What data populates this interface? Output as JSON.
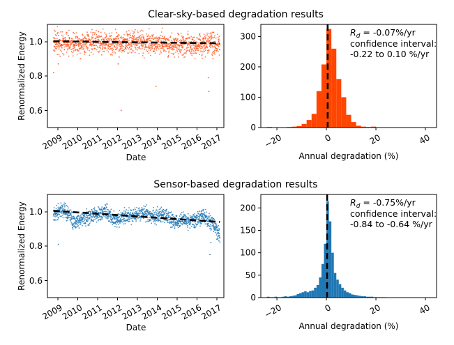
{
  "figure": {
    "rows": [
      {
        "title": "Clear-sky-based degradation results",
        "scatter": {
          "type": "scatter",
          "xlabel": "Date",
          "ylabel": "Renormalized Energy",
          "x_tick_labels": [
            "2009",
            "2010",
            "2011",
            "2012",
            "2013",
            "2014",
            "2015",
            "2016",
            "2017"
          ],
          "y_tick_labels": [
            "0.6",
            "0.8",
            "1.0"
          ],
          "xlim": [
            2008.65,
            2017.5
          ],
          "ylim": [
            0.5,
            1.1
          ],
          "point_color": "#ff5722",
          "trend": {
            "x": [
              2008.95,
              2017.3
            ],
            "y": [
              1.002,
              0.99
            ]
          },
          "center_curve": {
            "x": [
              2009,
              2010,
              2011,
              2012,
              2013,
              2014,
              2015,
              2016,
              2017,
              2017.3
            ],
            "y": [
              0.995,
              0.99,
              1.0,
              0.99,
              0.995,
              0.99,
              0.985,
              0.985,
              0.985,
              0.985
            ]
          },
          "spread": 0.032,
          "outliers": [
            {
              "x": 2008.96,
              "y": 0.82
            },
            {
              "x": 2009.2,
              "y": 0.87
            },
            {
              "x": 2012.35,
              "y": 0.6
            },
            {
              "x": 2014.1,
              "y": 0.74
            },
            {
              "x": 2016.75,
              "y": 0.71
            },
            {
              "x": 2016.72,
              "y": 0.79
            },
            {
              "x": 2012.2,
              "y": 0.87
            },
            {
              "x": 2012.25,
              "y": 0.91
            },
            {
              "x": 2010.3,
              "y": 0.9
            },
            {
              "x": 2016.95,
              "y": 0.9
            },
            {
              "x": 2014.7,
              "y": 0.91
            }
          ]
        },
        "hist": {
          "type": "bar",
          "xlabel": "Annual degradation (%)",
          "x_tick_labels": [
            "−20",
            "0",
            "20",
            "40"
          ],
          "x_tick_values": [
            -20,
            0,
            20,
            40
          ],
          "y_tick_labels": [
            "0",
            "100",
            "200",
            "300"
          ],
          "y_tick_values": [
            0,
            100,
            200,
            300
          ],
          "xlim": [
            -26.5,
            44.5
          ],
          "ylim": [
            0,
            340
          ],
          "bar_color": "#ff4500",
          "bin_edges": [
            -24,
            -22,
            -20,
            -18,
            -16,
            -14,
            -12,
            -10,
            -8,
            -6,
            -4,
            -2,
            0,
            2,
            4,
            6,
            8,
            10,
            12,
            14,
            16,
            18,
            20,
            22,
            24,
            26,
            28,
            30,
            32,
            34,
            36,
            38,
            40
          ],
          "counts": [
            2,
            0,
            0,
            1,
            2,
            3,
            5,
            12,
            25,
            45,
            120,
            208,
            325,
            260,
            160,
            100,
            42,
            18,
            6,
            3,
            2,
            3,
            0,
            0,
            0,
            0,
            0,
            0,
            0,
            0,
            0,
            1
          ],
          "marker_x": 0.5,
          "annotation": {
            "rd_symbol": "R",
            "rd_subscript": "d",
            "rd_value": " = -0.07%/yr",
            "ci_label": "confidence interval:",
            "ci_range": "-0.22 to 0.10 %/yr"
          }
        }
      },
      {
        "title": "Sensor-based degradation results",
        "scatter": {
          "type": "scatter",
          "xlabel": "Date",
          "ylabel": "Renormalized Energy",
          "x_tick_labels": [
            "2009",
            "2010",
            "2011",
            "2012",
            "2013",
            "2014",
            "2015",
            "2016",
            "2017"
          ],
          "y_tick_labels": [
            "0.6",
            "0.8",
            "1.0"
          ],
          "xlim": [
            2008.65,
            2017.5
          ],
          "ylim": [
            0.5,
            1.1
          ],
          "point_color": "#1f77b4",
          "trend": {
            "x": [
              2008.95,
              2017.3
            ],
            "y": [
              1.005,
              0.94
            ]
          },
          "center_curve": {
            "x": [
              2009,
              2009.5,
              2010,
              2010.5,
              2011,
              2011.5,
              2012,
              2012.5,
              2013,
              2013.5,
              2014,
              2014.5,
              2015,
              2015.5,
              2016,
              2016.5,
              2017,
              2017.3
            ],
            "y": [
              0.99,
              1.01,
              0.94,
              0.97,
              0.98,
              1.0,
              0.95,
              0.97,
              0.98,
              0.99,
              0.97,
              0.98,
              0.94,
              0.95,
              0.95,
              0.97,
              0.93,
              0.86
            ]
          },
          "spread": 0.022,
          "outliers": [
            {
              "x": 2009.2,
              "y": 0.81
            },
            {
              "x": 2012.25,
              "y": 0.91
            },
            {
              "x": 2016.8,
              "y": 0.75
            },
            {
              "x": 2016.85,
              "y": 0.82
            },
            {
              "x": 2017.15,
              "y": 0.84
            },
            {
              "x": 2017.25,
              "y": 0.83
            }
          ]
        },
        "hist": {
          "type": "bar",
          "xlabel": "Annual degradation (%)",
          "x_tick_labels": [
            "−20",
            "0",
            "20",
            "40"
          ],
          "x_tick_values": [
            -20,
            0,
            20,
            40
          ],
          "y_tick_labels": [
            "0",
            "50",
            "100",
            "150",
            "200"
          ],
          "y_tick_values": [
            0,
            50,
            100,
            150,
            200
          ],
          "xlim": [
            -26.5,
            44.5
          ],
          "ylim": [
            0,
            230
          ],
          "bar_color": "#1f77b4",
          "bin_edges": [
            -24,
            -23,
            -22,
            -21,
            -20,
            -19,
            -18,
            -17,
            -16,
            -15,
            -14,
            -13,
            -12,
            -11,
            -10,
            -9,
            -8,
            -7,
            -6,
            -5,
            -4,
            -3,
            -2,
            -1,
            0,
            1,
            2,
            3,
            4,
            5,
            6,
            7,
            8,
            9,
            10,
            11,
            12,
            13,
            14,
            15,
            16,
            17,
            18,
            19,
            20,
            21,
            22,
            23,
            24
          ],
          "counts": [
            2,
            1,
            1,
            2,
            1,
            1,
            2,
            3,
            2,
            3,
            4,
            5,
            8,
            10,
            12,
            14,
            12,
            15,
            16,
            22,
            28,
            45,
            75,
            120,
            215,
            170,
            100,
            55,
            40,
            30,
            22,
            16,
            12,
            10,
            7,
            6,
            5,
            4,
            3,
            3,
            2,
            2,
            2,
            1,
            1,
            1,
            1,
            1
          ],
          "marker_x": 0.3,
          "annotation": {
            "rd_symbol": "R",
            "rd_subscript": "d",
            "rd_value": " = -0.75%/yr",
            "ci_label": "confidence interval:",
            "ci_range": "-0.84 to -0.64 %/yr"
          }
        }
      }
    ]
  }
}
